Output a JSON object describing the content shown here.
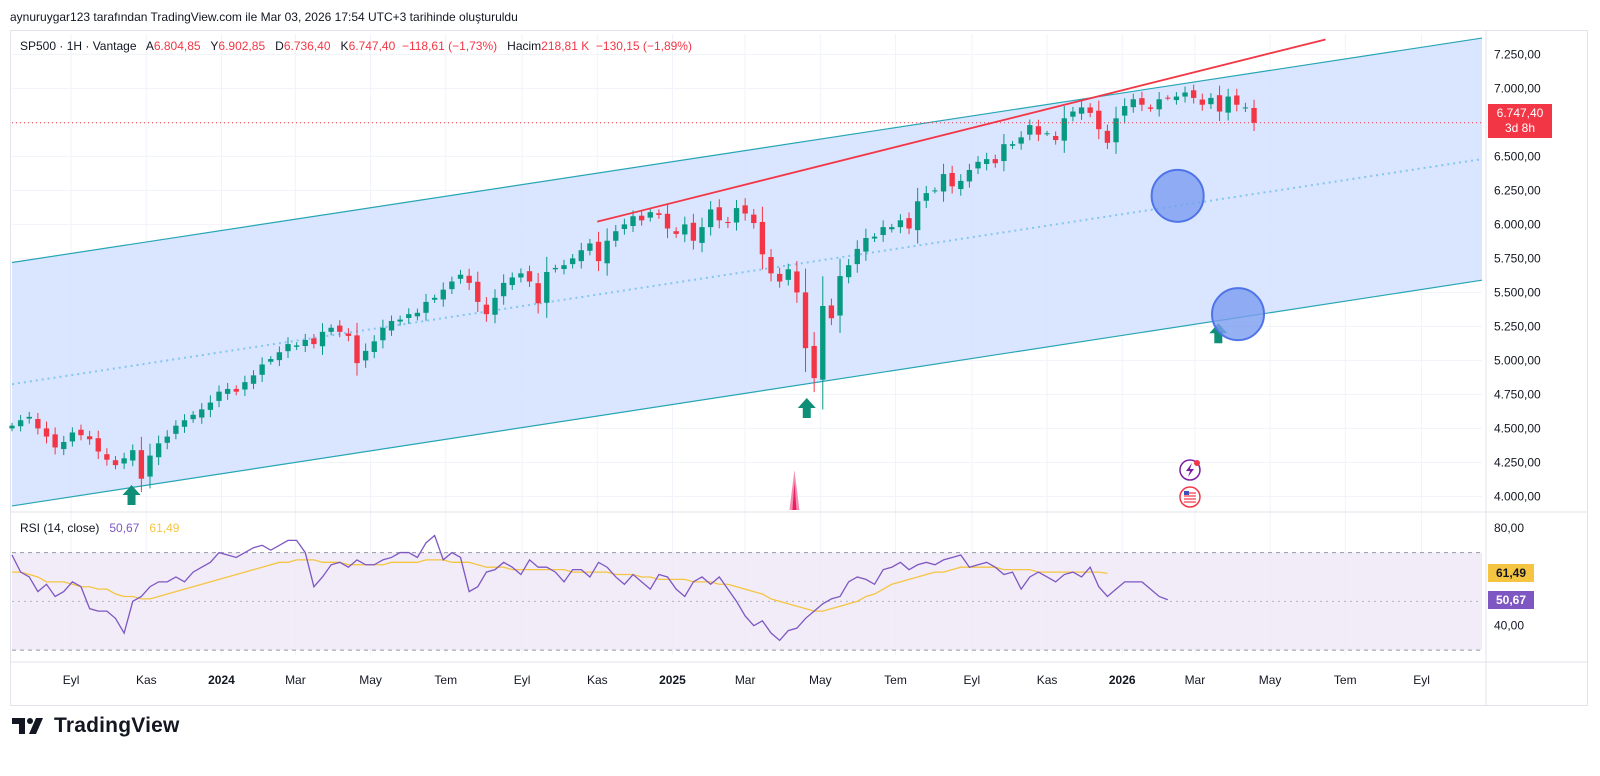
{
  "caption": "aynuruygar123 tarafından TradingView.com ile Mar 03, 2026 17:54 UTC+3 tarihinde oluşturuldu",
  "brand": "TradingView",
  "legend": {
    "symbol": "SP500 · 1H · Vantage",
    "open_label": "A",
    "open": "6.804,85",
    "high_label": "Y",
    "high": "6.902,85",
    "low_label": "D",
    "low": "6.736,40",
    "close_label": "K",
    "close": "6.747,40",
    "change": "−118,61 (−1,73%)",
    "volume_label": "Hacim",
    "volume": "218,81 K",
    "volume_change": "−130,15 (−1,89%)"
  },
  "price_tag": {
    "price": "6.747,40",
    "countdown": "3d 8h"
  },
  "rsi_legend": {
    "label": "RSI (14, close)",
    "rsi": "50,67",
    "ma": "61,49"
  },
  "colors": {
    "up": "#089981",
    "down": "#f23645",
    "channel_fill": "#d6e2ff",
    "channel_line": "#26a6b5",
    "midline": "#82c6f0",
    "trend": "#f23645",
    "rsi": "#7e57c2",
    "rsi_ma": "#f5c542",
    "rsi_band": "#ede7f6",
    "marker": "#7b9cf0"
  },
  "chart_data": {
    "type": "candlestick",
    "title": "SP500 · 1H · Vantage",
    "price_axis": {
      "min": 3900,
      "max": 7400,
      "ticks": [
        4000,
        4250,
        4500,
        4750,
        5000,
        5250,
        5500,
        5750,
        6000,
        6250,
        6500,
        6750,
        7000,
        7250
      ],
      "tick_labels": [
        "4.000,00",
        "4.250,00",
        "4.500,00",
        "4.750,00",
        "5.000,00",
        "5.250,00",
        "5.500,00",
        "5.750,00",
        "6.000,00",
        "6.250,00",
        "6.500,00",
        "6.750,00",
        "7.000,00",
        "7.250,00"
      ]
    },
    "time_axis": {
      "start": "2023-07-15",
      "end": "2026-10-20",
      "ticks": [
        {
          "label": "Eyl",
          "date": "2023-09-01"
        },
        {
          "label": "Kas",
          "date": "2023-11-01"
        },
        {
          "label": "2024",
          "date": "2024-01-01",
          "bold": true
        },
        {
          "label": "Mar",
          "date": "2024-03-01"
        },
        {
          "label": "May",
          "date": "2024-05-01"
        },
        {
          "label": "Tem",
          "date": "2024-07-01"
        },
        {
          "label": "Eyl",
          "date": "2024-09-01"
        },
        {
          "label": "Kas",
          "date": "2024-11-01"
        },
        {
          "label": "2025",
          "date": "2025-01-01",
          "bold": true
        },
        {
          "label": "Mar",
          "date": "2025-03-01"
        },
        {
          "label": "May",
          "date": "2025-05-01"
        },
        {
          "label": "Tem",
          "date": "2025-07-01"
        },
        {
          "label": "Eyl",
          "date": "2025-09-01"
        },
        {
          "label": "Kas",
          "date": "2025-11-01"
        },
        {
          "label": "2026",
          "date": "2026-01-01",
          "bold": true
        },
        {
          "label": "Mar",
          "date": "2026-03-01"
        },
        {
          "label": "May",
          "date": "2026-05-01"
        },
        {
          "label": "Tem",
          "date": "2026-07-01"
        },
        {
          "label": "Eyl",
          "date": "2026-09-01"
        }
      ]
    },
    "weekly_closes_start": "2023-07-15",
    "weekly_closes": [
      4520,
      4560,
      4585,
      4500,
      4440,
      4360,
      4400,
      4470,
      4450,
      4420,
      4330,
      4270,
      4230,
      4280,
      4340,
      4130,
      4300,
      4390,
      4440,
      4520,
      4560,
      4600,
      4640,
      4690,
      4770,
      4790,
      4770,
      4840,
      4890,
      4970,
      5010,
      5060,
      5120,
      5110,
      5150,
      5120,
      5210,
      5240,
      5210,
      5180,
      4980,
      5070,
      5140,
      5240,
      5290,
      5300,
      5340,
      5350,
      5430,
      5460,
      5520,
      5580,
      5630,
      5570,
      5430,
      5340,
      5460,
      5570,
      5610,
      5640,
      5580,
      5420,
      5650,
      5680,
      5700,
      5750,
      5810,
      5860,
      5730,
      5880,
      5950,
      6000,
      6060,
      6030,
      6090,
      6070,
      5970,
      5930,
      6000,
      5880,
      5980,
      6110,
      6030,
      6010,
      6120,
      6080,
      6010,
      5780,
      5640,
      5580,
      5670,
      5500,
      5090,
      4870,
      5400,
      5310,
      5620,
      5700,
      5820,
      5900,
      5910,
      5980,
      5980,
      6030,
      5970,
      6170,
      6230,
      6250,
      6370,
      6280,
      6320,
      6400,
      6460,
      6480,
      6450,
      6590,
      6590,
      6640,
      6730,
      6660,
      6670,
      6620,
      6780,
      6830,
      6860,
      6820,
      6700,
      6600,
      6780,
      6870,
      6920,
      6880,
      6850,
      6920,
      6930,
      6940,
      6970,
      6930,
      6880,
      6930,
      6830,
      6940,
      6880,
      6860,
      6747
    ],
    "channel": {
      "upper": [
        {
          "date": "2023-07-15",
          "price": 5720
        },
        {
          "date": "2026-10-20",
          "price": 7370
        }
      ],
      "lower": [
        {
          "date": "2023-07-15",
          "price": 3930
        },
        {
          "date": "2026-10-20",
          "price": 5590
        }
      ],
      "mid": [
        {
          "date": "2023-07-15",
          "price": 4825
        },
        {
          "date": "2026-10-20",
          "price": 6480
        }
      ]
    },
    "trendline": [
      {
        "date": "2024-11-01",
        "price": 6020
      },
      {
        "date": "2026-06-15",
        "price": 7360
      }
    ],
    "last_price_line": 6747.4,
    "arrows": [
      {
        "date": "2023-10-20",
        "price": 4010
      },
      {
        "date": "2025-04-20",
        "price": 4650
      },
      {
        "date": "2026-03-20",
        "price": 5200
      }
    ],
    "circles": [
      {
        "date": "2026-02-15",
        "price": 6210
      },
      {
        "date": "2026-04-05",
        "price": 5340
      }
    ],
    "rsi": {
      "axis": {
        "min": 28,
        "max": 85,
        "ticks": [
          40,
          80
        ],
        "tick_labels": [
          "40,00",
          "80,00"
        ],
        "upper_band": 70,
        "lower_band": 30
      },
      "values": [
        69,
        62,
        60,
        54,
        57,
        52,
        54,
        58,
        56,
        47,
        46,
        46,
        43,
        37,
        50,
        52,
        56,
        58,
        58,
        60,
        58,
        62,
        64,
        66,
        70,
        69,
        68,
        70,
        72,
        73,
        71,
        73,
        75,
        75,
        70,
        56,
        60,
        65,
        66,
        64,
        67,
        65,
        65,
        67,
        68,
        70,
        70,
        68,
        74,
        77,
        67,
        70,
        68,
        54,
        56,
        62,
        63,
        66,
        64,
        61,
        67,
        64,
        64,
        62,
        58,
        63,
        63,
        60,
        66,
        64,
        60,
        57,
        61,
        58,
        55,
        61,
        60,
        55,
        52,
        58,
        60,
        57,
        60,
        55,
        50,
        44,
        40,
        42,
        37,
        34,
        38,
        39,
        43,
        46,
        49,
        51,
        52,
        58,
        60,
        59,
        57,
        63,
        64,
        66,
        63,
        65,
        66,
        65,
        67,
        68,
        69,
        64,
        65,
        66,
        64,
        61,
        62,
        55,
        60,
        62,
        60,
        58,
        61,
        62,
        60,
        64,
        56,
        52,
        55,
        58,
        58,
        58,
        55,
        52,
        50.67
      ],
      "ma": [
        62,
        62,
        61,
        60,
        58,
        58,
        58,
        57,
        56,
        56,
        55,
        55,
        53,
        52,
        52,
        51,
        51,
        52,
        53,
        54,
        55,
        56,
        57,
        58,
        59,
        60,
        61,
        62,
        63,
        64,
        65,
        66,
        66,
        67,
        67,
        67,
        66,
        66,
        66,
        65,
        65,
        65,
        65,
        65,
        66,
        66,
        66,
        66,
        67,
        67,
        67,
        66,
        66,
        66,
        65,
        64,
        64,
        64,
        63,
        63,
        63,
        63,
        63,
        63,
        63,
        62,
        62,
        62,
        62,
        62,
        61,
        61,
        61,
        60,
        60,
        59,
        59,
        59,
        59,
        58,
        58,
        58,
        57,
        57,
        56,
        55,
        54,
        53,
        51,
        50,
        49,
        48,
        47,
        46,
        46,
        47,
        48,
        49,
        50,
        52,
        53,
        55,
        57,
        58,
        59,
        60,
        61,
        62,
        62,
        63,
        64,
        64,
        64,
        64,
        64,
        63,
        63,
        63,
        63,
        62,
        62,
        62,
        62,
        62,
        62,
        62,
        62,
        61.49
      ]
    }
  }
}
